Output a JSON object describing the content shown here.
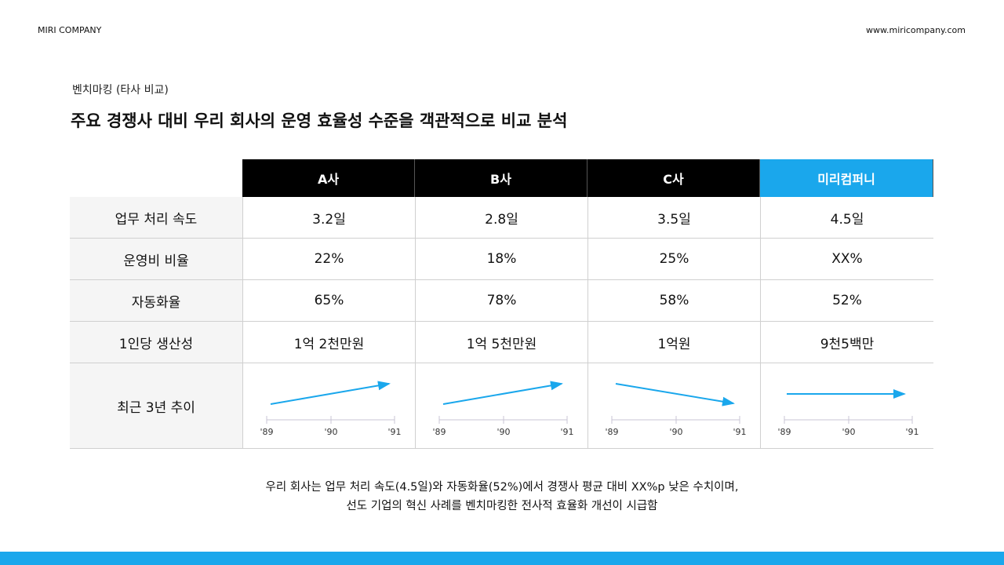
{
  "header": {
    "company": "MIRI COMPANY",
    "website": "www.miricompany.com"
  },
  "section": {
    "label": "벤치마킹 (타사 비교)",
    "title": "주요 경쟁사 대비 우리 회사의 운영 효율성 수준을 객관적으로 비교 분석"
  },
  "table": {
    "columns": [
      "A사",
      "B사",
      "C사",
      "미리컴퍼니"
    ],
    "rows": [
      {
        "label": "업무 처리 속도",
        "cells": [
          "3.2일",
          "2.8일",
          "3.5일",
          "4.5일"
        ]
      },
      {
        "label": "운영비 비율",
        "cells": [
          "22%",
          "18%",
          "25%",
          "XX%"
        ]
      },
      {
        "label": "자동화율",
        "cells": [
          "65%",
          "78%",
          "58%",
          "52%"
        ]
      },
      {
        "label": "1인당 생산성",
        "cells": [
          "1억 2천만원",
          "1억 5천만원",
          "1억원",
          "9천5백만"
        ]
      }
    ],
    "trend_label": "최근 3년 추이",
    "trend_axis": [
      "'89",
      "'90",
      "'91"
    ]
  },
  "summary": [
    "우리 회사는 업무 처리 속도(4.5일)와 자동화율(52%)에서 경쟁사 평균 대비 XX%p 낮은 수치이며,",
    "선도 기업의 혁신 사례를 벤치마킹한 전사적 효율화 개선이 시급함"
  ]
}
